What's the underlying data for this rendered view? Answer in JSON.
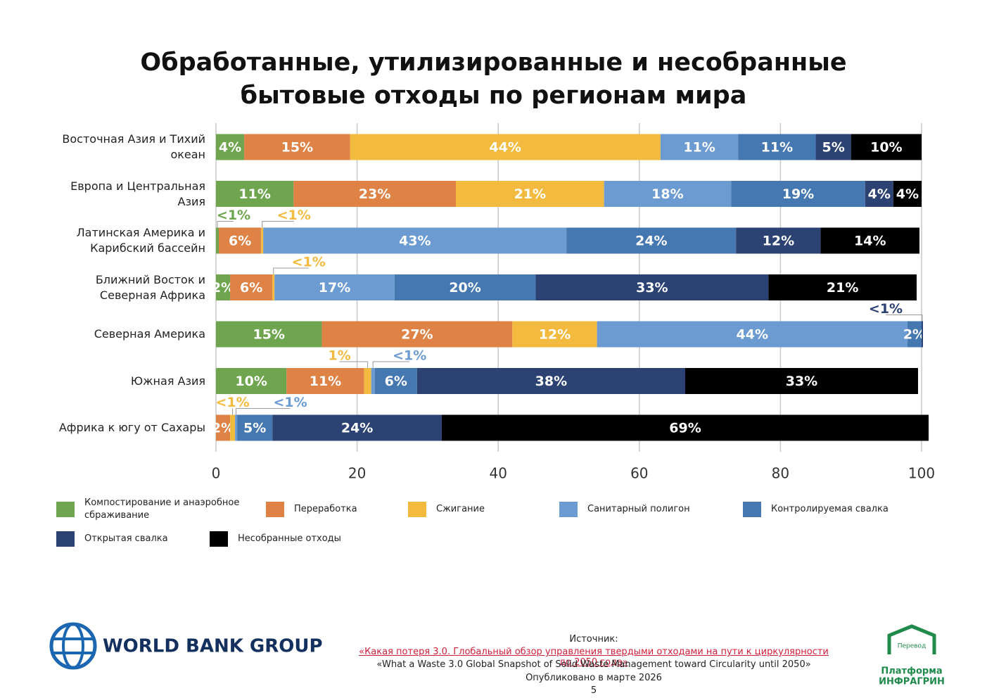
{
  "chart_data": {
    "type": "stacked-barh",
    "title": "Обработанные, утилизированные и несобранные бытовые отходы по регионам мира",
    "categories": [
      "Восточная Азия и Тихий океан",
      "Европа и Центральная Азия",
      "Латинская Америка и Карибский бассейн",
      "Ближний Восток и Северная Африка",
      "Северная Америка",
      "Южная Азия",
      "Африка к югу от Сахары"
    ],
    "series": [
      {
        "name": "Компостирование и анаэробное сбраживание",
        "color": "#70a550",
        "values": [
          4,
          11,
          0.4,
          2,
          15,
          10,
          null
        ],
        "value_labels": [
          "4%",
          "11%",
          "<1%",
          "2%",
          "15%",
          "10%",
          null
        ]
      },
      {
        "name": "Переработка",
        "color": "#de8245",
        "values": [
          15,
          23,
          6,
          6,
          27,
          11,
          2
        ],
        "value_labels": [
          "15%",
          "23%",
          "6%",
          "6%",
          "27%",
          "11%",
          "2%"
        ]
      },
      {
        "name": "Сжигание",
        "color": "#f2bb40",
        "values": [
          44,
          21,
          0.3,
          0.3,
          12,
          1,
          0.7
        ],
        "value_labels": [
          "44%",
          "21%",
          "<1%",
          "<1%",
          "12%",
          "1%",
          "<1%"
        ]
      },
      {
        "name": "Санитарный полигон",
        "color": "#6b9bd0",
        "values": [
          11,
          18,
          43,
          17,
          44,
          0.5,
          0.3
        ],
        "value_labels": [
          "11%",
          "18%",
          "43%",
          "17%",
          "44%",
          "<1%",
          "<1%"
        ]
      },
      {
        "name": "Контролируемая свалка",
        "color": "#4577b0",
        "values": [
          11,
          19,
          24,
          20,
          2,
          6,
          5
        ],
        "value_labels": [
          "11%",
          "19%",
          "24%",
          "20%",
          "2%",
          "6%",
          "5%"
        ]
      },
      {
        "name": "Открытая свалка",
        "color": "#2b4272",
        "values": [
          5,
          4,
          12,
          33,
          0.2,
          38,
          24
        ],
        "value_labels": [
          "5%",
          "4%",
          "12%",
          "33%",
          "<1%",
          "38%",
          "24%"
        ]
      },
      {
        "name": "Несобранные отходы",
        "color": "#000000",
        "values": [
          10,
          4,
          14,
          21,
          null,
          33,
          69
        ],
        "value_labels": [
          "10%",
          "4%",
          "14%",
          "21%",
          null,
          "33%",
          "69%"
        ]
      }
    ],
    "xlim": [
      0,
      100
    ],
    "xticks": [
      0,
      20,
      40,
      60,
      80,
      100
    ],
    "grid": true
  },
  "footer": {
    "world_bank": "WORLD BANK GROUP",
    "source_label": "Источник:",
    "source_link": "«Какая потеря 3.0. Глобальный обзор управления твердыми отходами на пути к циркулярности до 2050 года»",
    "source_en": "«What a Waste 3.0 Global Snapshot of Solid Waste Management toward Circularity until 2050»",
    "published": "Опубликовано в марте 2026",
    "page": "5",
    "logo_top": "Перевод",
    "logo_line1": "Платформа",
    "logo_line2": "ИНФРАГРИН"
  }
}
